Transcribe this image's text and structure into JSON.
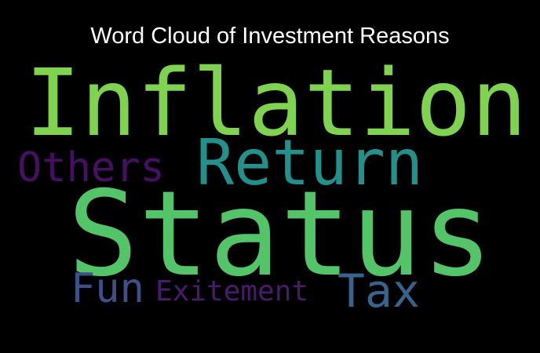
{
  "chart_data": {
    "type": "wordcloud",
    "title": "Word Cloud of Investment Reasons",
    "background": "#000000",
    "words": [
      {
        "text": "Inflation",
        "weight": 0.8,
        "color": "#80d350"
      },
      {
        "text": "Return",
        "weight": 0.55,
        "color": "#22918c"
      },
      {
        "text": "Others",
        "weight": 0.35,
        "color": "#470f63"
      },
      {
        "text": "Status",
        "weight": 1.0,
        "color": "#54c468"
      },
      {
        "text": "Fun",
        "weight": 0.35,
        "color": "#3d5188"
      },
      {
        "text": "Exitement",
        "weight": 0.25,
        "color": "#4a1a6d"
      },
      {
        "text": "Tax",
        "weight": 0.4,
        "color": "#37648c"
      }
    ]
  }
}
